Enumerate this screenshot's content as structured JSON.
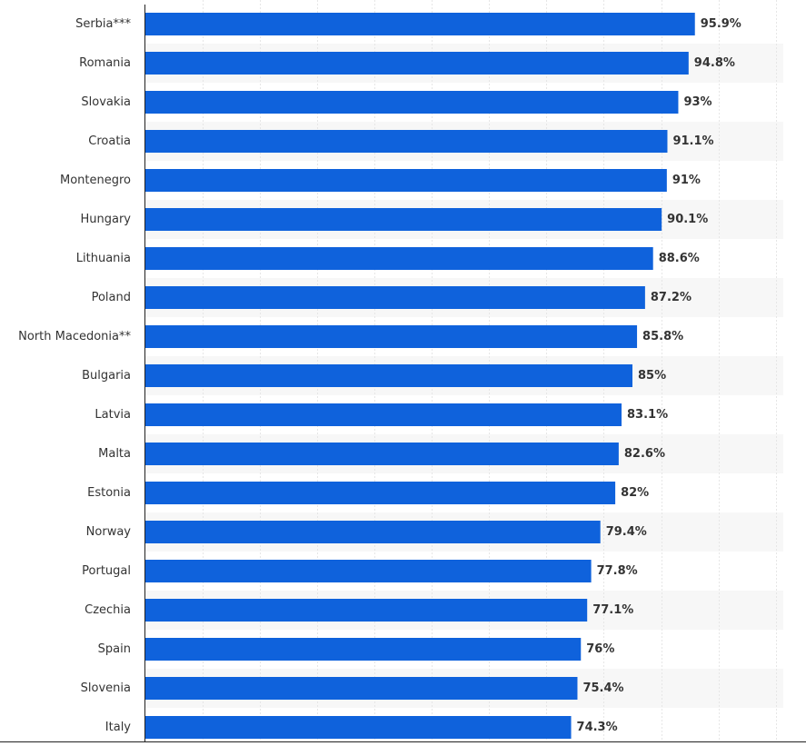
{
  "chart_data": {
    "type": "bar",
    "orientation": "horizontal",
    "title": "",
    "xlabel": "",
    "ylabel": "",
    "categories": [
      "Serbia***",
      "Romania",
      "Slovakia",
      "Croatia",
      "Montenegro",
      "Hungary",
      "Lithuania",
      "Poland",
      "North Macedonia**",
      "Bulgaria",
      "Latvia",
      "Malta",
      "Estonia",
      "Norway",
      "Portugal",
      "Czechia",
      "Spain",
      "Slovenia",
      "Italy"
    ],
    "values": [
      95.9,
      94.8,
      93,
      91.1,
      91,
      90.1,
      88.6,
      87.2,
      85.8,
      85,
      83.1,
      82.6,
      82,
      79.4,
      77.8,
      77.1,
      76,
      75.4,
      74.3
    ],
    "value_labels": [
      "95.9%",
      "94.8%",
      "93%",
      "91.1%",
      "91%",
      "90.1%",
      "88.6%",
      "87.2%",
      "85.8%",
      "85%",
      "83.1%",
      "82.6%",
      "82%",
      "79.4%",
      "77.8%",
      "77.1%",
      "76%",
      "75.4%",
      "74.3%"
    ],
    "value_unit": "%",
    "xlim": [
      0,
      110
    ],
    "grid": true,
    "bar_color": "#0f62dc",
    "band_color": "#f7f7f7",
    "grid_color": "#e6e6e6",
    "axis_color": "#222222",
    "text_color": "#333333"
  }
}
